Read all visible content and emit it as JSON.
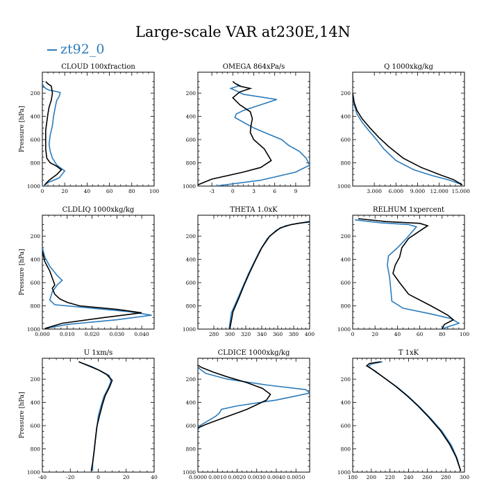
{
  "title": "Large-scale VAR at230E,14N",
  "legend": {
    "label": "zt92_0"
  },
  "colors": {
    "case": "#2b7bbb",
    "ref": "#000000"
  },
  "chart_data": [
    {
      "type": "line",
      "title": "CLOUD  100xfraction",
      "ylabel": "Pressure [hPa]",
      "xlim": [
        0,
        100
      ],
      "ylim": [
        1000,
        20
      ],
      "yticks": [
        200,
        400,
        600,
        800,
        1000
      ],
      "xticks": [
        0,
        20,
        40,
        60,
        80,
        100
      ],
      "xticklabels": [
        "0",
        "20",
        "40",
        "60",
        "80",
        "100"
      ],
      "series": [
        {
          "name": "zt92_0",
          "x": [
            0,
            1,
            3,
            6,
            12,
            16,
            15,
            13,
            12,
            11,
            10,
            9,
            7,
            6,
            7,
            9,
            13,
            20,
            15,
            5,
            1
          ],
          "y": [
            120,
            140,
            160,
            175,
            185,
            195,
            230,
            260,
            300,
            350,
            400,
            480,
            560,
            640,
            700,
            760,
            820,
            870,
            930,
            970,
            1000
          ]
        },
        {
          "name": "",
          "x": [
            3,
            5,
            8,
            9,
            8,
            6,
            5,
            4,
            3,
            3,
            3,
            4,
            7,
            13,
            17,
            13,
            6,
            2
          ],
          "y": [
            100,
            120,
            140,
            200,
            260,
            320,
            380,
            450,
            520,
            600,
            680,
            760,
            800,
            830,
            860,
            900,
            950,
            990
          ]
        }
      ]
    },
    {
      "type": "line",
      "title": "OMEGA  864xPa/s",
      "ylabel": "",
      "xlim": [
        -5,
        11
      ],
      "ylim": [
        1000,
        20
      ],
      "yticks": [
        200,
        400,
        600,
        800,
        1000
      ],
      "xticks": [
        -3,
        0,
        3,
        6,
        9
      ],
      "xticklabels": [
        "-3",
        "0",
        "3",
        "6",
        "9"
      ],
      "series": [
        {
          "name": "zt92_0",
          "x": [
            0.5,
            1.0,
            -0.3,
            0.5,
            1.5,
            6.3,
            4.0,
            1.5,
            0.5,
            0.3,
            1.5,
            3.0,
            5.0,
            7.0,
            8.0,
            9.5,
            10.5,
            11.0,
            9.0,
            4.0,
            -2.5
          ],
          "y": [
            120,
            135,
            160,
            180,
            210,
            255,
            300,
            350,
            380,
            410,
            450,
            500,
            550,
            600,
            650,
            700,
            760,
            820,
            880,
            950,
            1000
          ]
        },
        {
          "name": "",
          "x": [
            0.0,
            0.3,
            1.0,
            2.5,
            1.0,
            0.0,
            1.0,
            2.5,
            2.8,
            2.6,
            2.5,
            3.0,
            4.5,
            5.5,
            4.0,
            1.5,
            -3.0,
            -5.0
          ],
          "y": [
            100,
            115,
            140,
            160,
            190,
            240,
            300,
            360,
            420,
            480,
            540,
            600,
            680,
            780,
            840,
            880,
            940,
            990
          ]
        }
      ]
    },
    {
      "type": "line",
      "title": "Q  1000xkg/kg",
      "ylabel": "",
      "xlim": [
        0,
        15.5
      ],
      "ylim": [
        1000,
        20
      ],
      "yticks": [
        200,
        400,
        600,
        800,
        1000
      ],
      "xticks": [
        3,
        6,
        9,
        12,
        15
      ],
      "xticklabels": [
        "3.000",
        "6.000",
        "9.000",
        "12.000",
        "15.000"
      ],
      "series": [
        {
          "name": "zt92_0",
          "x": [
            0.0,
            0.2,
            0.6,
            1.3,
            2.2,
            3.3,
            4.3,
            6.0,
            8.5,
            11.0,
            13.5,
            15.2
          ],
          "y": [
            220,
            300,
            380,
            450,
            520,
            600,
            680,
            780,
            860,
            910,
            950,
            990
          ]
        },
        {
          "name": "",
          "x": [
            0.0,
            0.2,
            0.6,
            1.3,
            2.4,
            3.6,
            5.0,
            7.0,
            9.5,
            12.0,
            14.0,
            15.2
          ],
          "y": [
            200,
            280,
            350,
            420,
            500,
            580,
            660,
            760,
            840,
            900,
            945,
            990
          ]
        }
      ]
    },
    {
      "type": "line",
      "title": "CLDLIQ  1000xkg/kg",
      "ylabel": "Pressure [hPa]",
      "xlim": [
        0,
        0.045
      ],
      "ylim": [
        1000,
        20
      ],
      "yticks": [
        200,
        400,
        600,
        800,
        1000
      ],
      "xticks": [
        0,
        0.01,
        0.02,
        0.03,
        0.04
      ],
      "xticklabels": [
        "0.000",
        "0.010",
        "0.020",
        "0.030",
        "0.040"
      ],
      "series": [
        {
          "name": "zt92_0",
          "x": [
            0,
            0.001,
            0.003,
            0.006,
            0.008,
            0.006,
            0.004,
            0.003,
            0.005,
            0.02,
            0.035,
            0.044,
            0.03,
            0.01,
            0.001
          ],
          "y": [
            300,
            380,
            460,
            540,
            580,
            620,
            680,
            750,
            790,
            820,
            850,
            880,
            920,
            960,
            995
          ]
        },
        {
          "name": "",
          "x": [
            0,
            0.001,
            0.003,
            0.004,
            0.005,
            0.004,
            0.005,
            0.007,
            0.01,
            0.015,
            0.03,
            0.04,
            0.025,
            0.008,
            0.001
          ],
          "y": [
            330,
            420,
            500,
            560,
            620,
            650,
            700,
            740,
            770,
            800,
            830,
            860,
            900,
            950,
            995
          ]
        }
      ]
    },
    {
      "type": "line",
      "title": "THETA  1.0xK",
      "ylabel": "",
      "xlim": [
        260,
        400
      ],
      "ylim": [
        1000,
        20
      ],
      "yticks": [
        200,
        400,
        600,
        800,
        1000
      ],
      "xticks": [
        280,
        300,
        320,
        340,
        360,
        380,
        400
      ],
      "xticklabels": [
        "280",
        "300",
        "320",
        "340",
        "360",
        "380",
        "400"
      ],
      "series": [
        {
          "name": "zt92_0",
          "x": [
            400,
            385,
            370,
            358,
            347,
            338,
            330,
            323,
            316,
            309,
            302,
            299
          ],
          "y": [
            80,
            90,
            110,
            150,
            220,
            320,
            430,
            530,
            640,
            750,
            860,
            1000
          ]
        },
        {
          "name": "",
          "x": [
            400,
            390,
            377,
            363,
            350,
            340,
            332,
            325,
            318,
            311,
            304,
            300
          ],
          "y": [
            75,
            85,
            100,
            130,
            200,
            300,
            410,
            510,
            620,
            740,
            850,
            1000
          ]
        }
      ]
    },
    {
      "type": "line",
      "title": "RELHUM  1xpercent",
      "ylabel": "",
      "xlim": [
        0,
        100
      ],
      "ylim": [
        1000,
        20
      ],
      "yticks": [
        200,
        400,
        600,
        800,
        1000
      ],
      "xticks": [
        0,
        20,
        40,
        60,
        80,
        100
      ],
      "xticklabels": [
        "0",
        "20",
        "40",
        "60",
        "80",
        "100"
      ],
      "series": [
        {
          "name": "zt92_0",
          "x": [
            2,
            25,
            50,
            57,
            48,
            40,
            32,
            31,
            33,
            34,
            35,
            45,
            70,
            88,
            95,
            85,
            80
          ],
          "y": [
            60,
            85,
            100,
            120,
            220,
            300,
            370,
            450,
            550,
            650,
            760,
            820,
            870,
            910,
            950,
            980,
            1000
          ]
        },
        {
          "name": "",
          "x": [
            5,
            30,
            60,
            67,
            50,
            44,
            42,
            38,
            36,
            42,
            50,
            70,
            85,
            90,
            82,
            80
          ],
          "y": [
            50,
            75,
            90,
            110,
            220,
            300,
            380,
            450,
            520,
            600,
            700,
            800,
            880,
            920,
            960,
            1000
          ]
        }
      ]
    },
    {
      "type": "line",
      "title": "U  1xm/s",
      "ylabel": "Pressure [hPa]",
      "xlim": [
        -40,
        40
      ],
      "ylim": [
        1000,
        20
      ],
      "yticks": [
        200,
        400,
        600,
        800,
        1000
      ],
      "xticks": [
        -40,
        -20,
        0,
        20,
        40
      ],
      "xticklabels": [
        "-40",
        "-20",
        "0",
        "20",
        "40"
      ],
      "series": [
        {
          "name": "zt92_0",
          "x": [
            -12,
            -5,
            2,
            8,
            9,
            7,
            4,
            2,
            0,
            -1,
            -2,
            -3,
            -4,
            -4
          ],
          "y": [
            60,
            90,
            130,
            170,
            220,
            280,
            350,
            430,
            520,
            620,
            720,
            830,
            930,
            990
          ]
        },
        {
          "name": "",
          "x": [
            -14,
            -8,
            0,
            6,
            10,
            8,
            5,
            3,
            1,
            -1,
            -2,
            -3,
            -4,
            -5
          ],
          "y": [
            50,
            80,
            120,
            160,
            210,
            270,
            340,
            420,
            510,
            610,
            710,
            820,
            920,
            990
          ]
        }
      ]
    },
    {
      "type": "line",
      "title": "CLDICE  1000xkg/kg",
      "ylabel": "",
      "xlim": [
        0,
        0.0057
      ],
      "ylim": [
        1000,
        20
      ],
      "yticks": [
        200,
        400,
        600,
        800,
        1000
      ],
      "xticks": [
        0,
        0.001,
        0.002,
        0.003,
        0.004,
        0.005
      ],
      "xticklabels": [
        "0.0000",
        "0.0010",
        "0.0020",
        "0.0030",
        "0.0040",
        "0.0050"
      ],
      "series": [
        {
          "name": "zt92_0",
          "x": [
            0,
            0.0004,
            0.0015,
            0.0035,
            0.0055,
            0.0057,
            0.004,
            0.002,
            0.0012,
            0.0011,
            0.0009,
            0.0005,
            0.0001,
            0
          ],
          "y": [
            100,
            150,
            200,
            250,
            290,
            320,
            380,
            430,
            460,
            490,
            520,
            560,
            600,
            640
          ]
        },
        {
          "name": "",
          "x": [
            0,
            0.0002,
            0.0008,
            0.0015,
            0.0025,
            0.0033,
            0.0037,
            0.0035,
            0.0025,
            0.0012,
            0.0004,
            0
          ],
          "y": [
            80,
            100,
            140,
            180,
            230,
            280,
            330,
            380,
            460,
            540,
            590,
            620
          ]
        }
      ]
    },
    {
      "type": "line",
      "title": "T  1xK",
      "ylabel": "",
      "xlim": [
        180,
        300
      ],
      "ylim": [
        1000,
        20
      ],
      "yticks": [
        200,
        400,
        600,
        800,
        1000
      ],
      "xticks": [
        180,
        200,
        220,
        240,
        260,
        280,
        300
      ],
      "xticklabels": [
        "180",
        "200",
        "220",
        "240",
        "260",
        "280",
        "300"
      ],
      "series": [
        {
          "name": "zt92_0",
          "x": [
            212,
            200,
            197,
            205,
            216,
            228,
            240,
            252,
            264,
            276,
            286,
            292,
            296
          ],
          "y": [
            50,
            70,
            90,
            140,
            200,
            270,
            350,
            440,
            540,
            650,
            770,
            880,
            990
          ]
        },
        {
          "name": "",
          "x": [
            210,
            198,
            195,
            204,
            214,
            226,
            238,
            250,
            262,
            274,
            284,
            291,
            296
          ],
          "y": [
            50,
            65,
            85,
            130,
            190,
            260,
            340,
            430,
            530,
            640,
            760,
            870,
            990
          ]
        }
      ]
    }
  ]
}
